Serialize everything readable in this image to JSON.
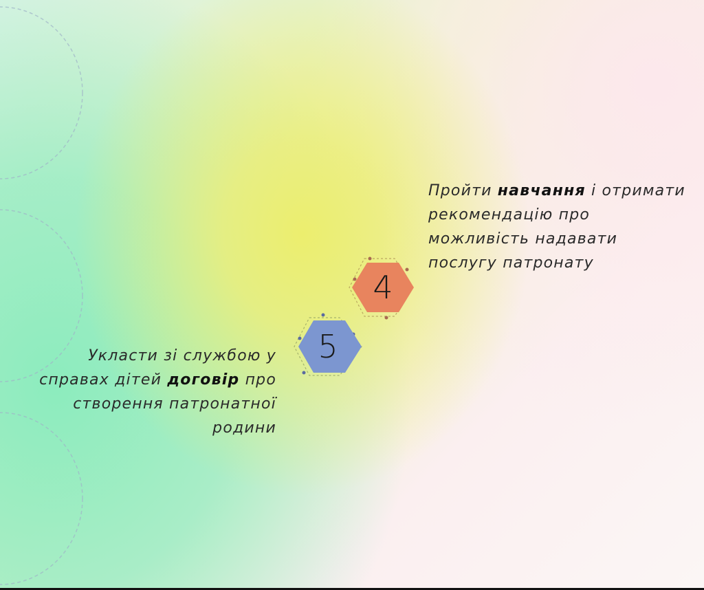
{
  "steps": [
    {
      "number": "4",
      "text_before": "Пройти ",
      "bold": "навчання",
      "text_after": " і отримати рекомендацію про можливість надавати послугу патронату",
      "color": "#e8845e"
    },
    {
      "number": "5",
      "text_before": "Укласти зі службою у справах дітей ",
      "bold": "договір",
      "text_after": " про створення патронатної родини",
      "color": "#7c96d0"
    }
  ]
}
